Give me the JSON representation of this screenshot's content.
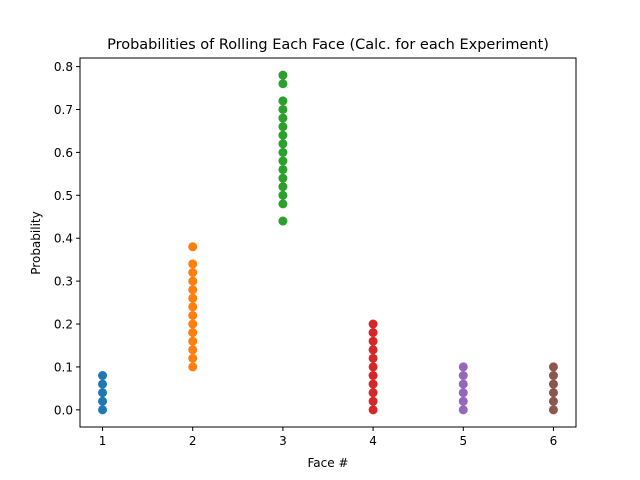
{
  "chart_data": {
    "type": "scatter",
    "title": "Probabilities of Rolling Each Face (Calc. for each Experiment)",
    "xlabel": "Face #",
    "ylabel": "Probability",
    "xlim": [
      0.75,
      6.25
    ],
    "ylim": [
      -0.04,
      0.82
    ],
    "xticks": [
      "1",
      "2",
      "3",
      "4",
      "5",
      "6"
    ],
    "yticks": [
      "0.0",
      "0.1",
      "0.2",
      "0.3",
      "0.4",
      "0.5",
      "0.6",
      "0.7",
      "0.8"
    ],
    "grid": false,
    "series": [
      {
        "x": 1,
        "color": "#1f77b4",
        "values": [
          0.0,
          0.02,
          0.04,
          0.06,
          0.08
        ]
      },
      {
        "x": 2,
        "color": "#ff7f0e",
        "values": [
          0.1,
          0.12,
          0.14,
          0.16,
          0.18,
          0.2,
          0.22,
          0.24,
          0.26,
          0.28,
          0.3,
          0.32,
          0.34,
          0.38
        ]
      },
      {
        "x": 3,
        "color": "#2ca02c",
        "values": [
          0.44,
          0.48,
          0.5,
          0.52,
          0.54,
          0.56,
          0.58,
          0.6,
          0.62,
          0.64,
          0.66,
          0.68,
          0.7,
          0.72,
          0.76,
          0.78
        ]
      },
      {
        "x": 4,
        "color": "#d62728",
        "values": [
          0.0,
          0.02,
          0.04,
          0.06,
          0.08,
          0.1,
          0.12,
          0.14,
          0.16,
          0.18,
          0.2
        ]
      },
      {
        "x": 5,
        "color": "#9467bd",
        "values": [
          0.0,
          0.02,
          0.04,
          0.06,
          0.08,
          0.1
        ]
      },
      {
        "x": 6,
        "color": "#8c564b",
        "values": [
          0.0,
          0.02,
          0.04,
          0.06,
          0.08,
          0.1
        ]
      }
    ]
  }
}
